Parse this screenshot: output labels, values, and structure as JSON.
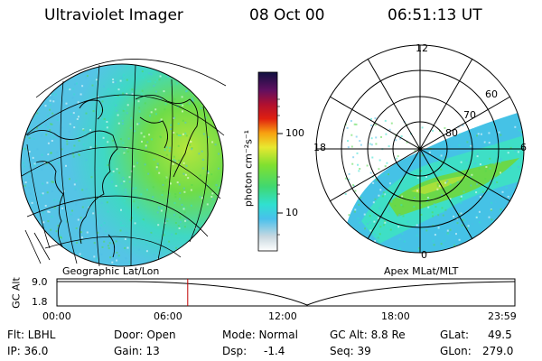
{
  "header": {
    "instrument": "Ultraviolet Imager",
    "date": "08 Oct 00",
    "time": "06:51:13 UT"
  },
  "colorbar": {
    "unit_label": "photon cm⁻²s⁻¹",
    "tick_labels": [
      "100",
      "10"
    ]
  },
  "left_panel": {
    "label": "Geographic Lat/Lon"
  },
  "right_panel": {
    "label": "Apex MLat/MLT",
    "mlt_labels": {
      "top": "12",
      "left": "18",
      "right": "6",
      "bottom": "0"
    },
    "lat_labels": [
      "60",
      "70",
      "80"
    ]
  },
  "timeline": {
    "ylabel": "GC Alt",
    "ytick_top": "9.0",
    "ytick_bottom": "1.8",
    "xtick_labels": [
      "00:00",
      "06:00",
      "12:00",
      "18:00",
      "23:59"
    ],
    "cursor_time_hours": 6.85
  },
  "info": {
    "row1": {
      "flt": "Flt: LBHL",
      "door": "Door: Open",
      "mode": "Mode: Normal",
      "gcalt": "GC Alt: 8.8 Re",
      "glat_label": "GLat:",
      "glat_value": "49.5"
    },
    "row2": {
      "ip": "IP: 36.0",
      "gain": "Gain: 13",
      "dsp_label": "Dsp:",
      "dsp_value": "-1.4",
      "seq": "Seq: 39",
      "glon_label": "GLon:",
      "glon_value": "279.0"
    }
  },
  "colors": {
    "uv_blue": "#4fbde8",
    "uv_cyan": "#34e0cc",
    "uv_green": "#54d84c",
    "uv_yellowgreen": "#b6e63c",
    "cursor": "#c00000"
  }
}
